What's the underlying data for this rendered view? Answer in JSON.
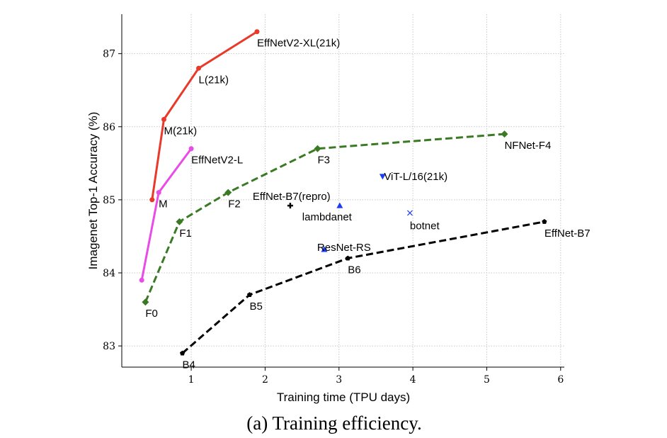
{
  "chart_data": {
    "type": "line",
    "caption": "(a) Training efficiency.",
    "xlabel": "Training time (TPU days)",
    "ylabel": "Imagenet Top-1 Accuracy (%)",
    "xlim": [
      0.06,
      6.05
    ],
    "ylim": [
      82.71,
      87.54
    ],
    "xticks": [
      1,
      2,
      3,
      4,
      5,
      6
    ],
    "yticks": [
      83,
      84,
      85,
      86,
      87
    ],
    "grid": true,
    "series": [
      {
        "color": "#e8392b",
        "style": "solid",
        "marker": "circle",
        "points": [
          [
            0.47,
            85.0
          ],
          [
            0.63,
            86.1
          ],
          [
            1.1,
            86.8
          ],
          [
            1.89,
            87.3
          ]
        ],
        "labels": [
          "",
          "M(21k)",
          "L(21k)",
          "EffNetV2-XL(21k)"
        ]
      },
      {
        "color": "#e94be8",
        "style": "solid",
        "marker": "circle",
        "points": [
          [
            0.33,
            83.9
          ],
          [
            0.56,
            85.1
          ],
          [
            1.0,
            85.7
          ]
        ],
        "labels": [
          "",
          "M",
          "EffNetV2-L"
        ]
      },
      {
        "color": "#3a7a25",
        "style": "dashed",
        "marker": "diamond",
        "points": [
          [
            0.38,
            83.6
          ],
          [
            0.84,
            84.7
          ],
          [
            1.5,
            85.1
          ],
          [
            2.71,
            85.7
          ],
          [
            5.24,
            85.9
          ]
        ],
        "labels": [
          "F0",
          "F1",
          "F2",
          "F3",
          "NFNet-F4"
        ]
      },
      {
        "color": "#000000",
        "style": "dashed",
        "marker": "pentagon",
        "points": [
          [
            0.88,
            82.9
          ],
          [
            1.79,
            83.7
          ],
          [
            3.12,
            84.2
          ],
          [
            5.78,
            84.7
          ]
        ],
        "labels": [
          "B4",
          "B5",
          "B6",
          "EffNet-B7"
        ]
      }
    ],
    "singles": [
      {
        "label": "EffNet-B7(repro)",
        "x": 2.34,
        "y": 84.92,
        "marker": "plus",
        "color": "#000000"
      },
      {
        "label": "lambdanet",
        "x": 3.01,
        "y": 84.92,
        "marker": "triangle-up",
        "color": "#1a3cf5"
      },
      {
        "label": "ViT-L/16(21k)",
        "x": 3.59,
        "y": 85.32,
        "marker": "triangle-down",
        "color": "#1a3cf5"
      },
      {
        "label": "botnet",
        "x": 3.96,
        "y": 84.82,
        "marker": "x",
        "color": "#1a3cf5"
      },
      {
        "label": "ResNet-RS",
        "x": 2.8,
        "y": 84.32,
        "marker": "triangle-up",
        "color": "#1a3cf5"
      }
    ]
  }
}
